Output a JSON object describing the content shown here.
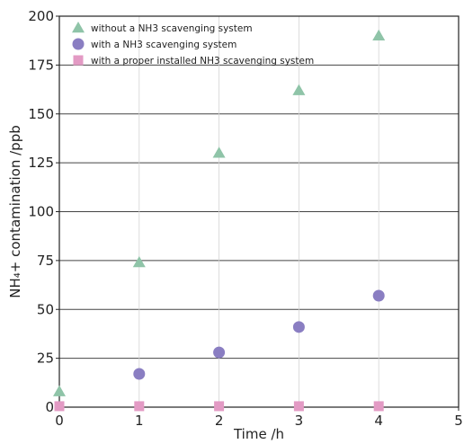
{
  "chart_data": {
    "type": "scatter",
    "xlabel": "Time /h",
    "ylabel": "NH₄+ contamination /ppb",
    "xlim": [
      0,
      5
    ],
    "ylim": [
      0,
      200
    ],
    "x_ticks": [
      "0",
      "1",
      "2",
      "3",
      "4",
      "5"
    ],
    "y_ticks": [
      "0",
      "25",
      "50",
      "75",
      "100",
      "125",
      "150",
      "175",
      "200"
    ],
    "grid": true,
    "legend_position": "top-left",
    "series": [
      {
        "name": "without a NH3 scavenging system",
        "marker": "triangle",
        "color": "#8fc4a8",
        "x": [
          0,
          1,
          2,
          3,
          4
        ],
        "y": [
          8,
          74,
          130,
          162,
          190
        ]
      },
      {
        "name": "with a NH3 scavenging system",
        "marker": "circle",
        "color": "#8a7ec2",
        "x": [
          1,
          2,
          3,
          4
        ],
        "y": [
          17,
          28,
          41,
          57
        ]
      },
      {
        "name": "with a proper installed NH3 scavenging system",
        "marker": "square",
        "color": "#e39ac4",
        "x": [
          0,
          1,
          2,
          3,
          4
        ],
        "y": [
          0.5,
          0.5,
          0.5,
          0.5,
          0.5
        ]
      }
    ]
  }
}
